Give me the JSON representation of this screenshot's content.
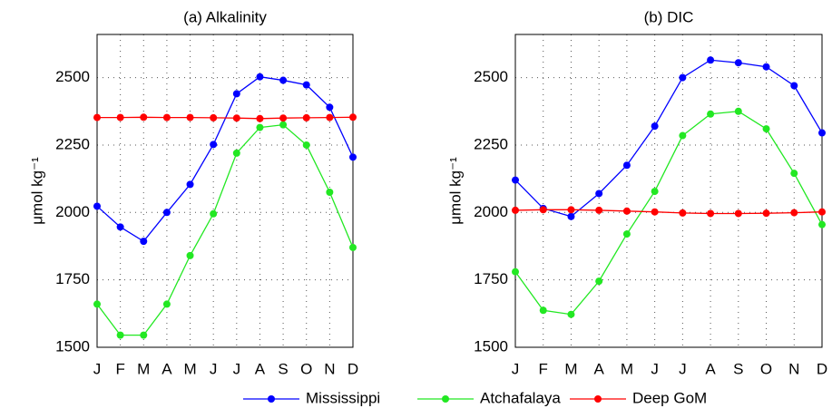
{
  "chart_data": [
    {
      "type": "line",
      "title": "(a) Alkalinity",
      "ylabel": "μmol kg⁻¹",
      "categories": [
        "J",
        "F",
        "M",
        "A",
        "M",
        "J",
        "J",
        "A",
        "S",
        "O",
        "N",
        "D"
      ],
      "ylim": [
        1500,
        2660
      ],
      "yticks": [
        1500,
        1750,
        2000,
        2250,
        2500
      ],
      "grid": true,
      "legend": "bottom",
      "series": [
        {
          "name": "Mississippi",
          "color": "#0000ff",
          "values": [
            2023,
            1946,
            1893,
            2000,
            2104,
            2252,
            2440,
            2503,
            2490,
            2473,
            2390,
            2205
          ]
        },
        {
          "name": "Atchafalaya",
          "color": "#22e822",
          "values": [
            1660,
            1545,
            1545,
            1660,
            1840,
            1995,
            2220,
            2315,
            2325,
            2250,
            2075,
            1870
          ]
        },
        {
          "name": "Deep GoM",
          "color": "#ff0000",
          "values": [
            2352,
            2352,
            2353,
            2352,
            2352,
            2351,
            2350,
            2348,
            2350,
            2351,
            2352,
            2353
          ]
        }
      ]
    },
    {
      "type": "line",
      "title": "(b) DIC",
      "ylabel": "μmol kg⁻¹",
      "categories": [
        "J",
        "F",
        "M",
        "A",
        "M",
        "J",
        "J",
        "A",
        "S",
        "O",
        "N",
        "D"
      ],
      "ylim": [
        1500,
        2660
      ],
      "yticks": [
        1500,
        1750,
        2000,
        2250,
        2500
      ],
      "grid": true,
      "series": [
        {
          "color": "#0000ff",
          "values": [
            2120,
            2015,
            1985,
            2070,
            2175,
            2320,
            2500,
            2565,
            2555,
            2540,
            2470,
            2295
          ]
        },
        {
          "color": "#22e822",
          "values": [
            1780,
            1637,
            1622,
            1745,
            1920,
            2078,
            2285,
            2365,
            2375,
            2310,
            2145,
            1955
          ]
        },
        {
          "color": "#ff0000",
          "values": [
            2008,
            2010,
            2010,
            2008,
            2005,
            2002,
            1998,
            1996,
            1996,
            1997,
            1999,
            2002
          ]
        }
      ]
    }
  ]
}
